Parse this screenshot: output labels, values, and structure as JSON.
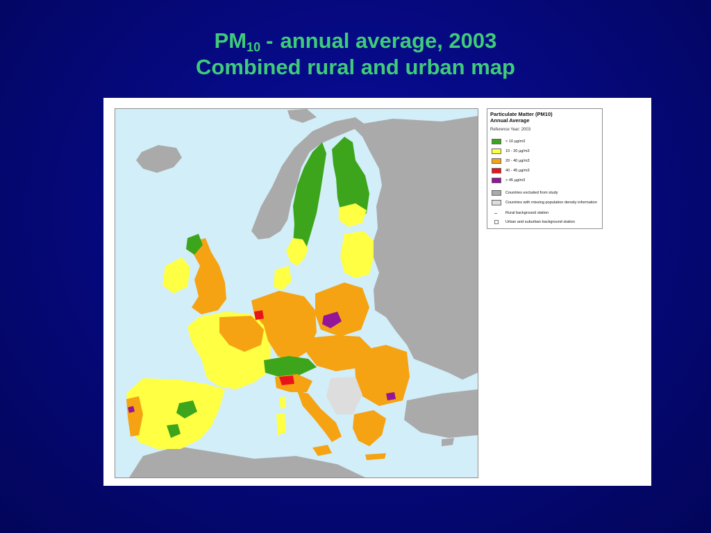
{
  "slide": {
    "title_pm": "PM",
    "title_sub": "10",
    "title_dash": "-",
    "title_rest": "annual average, 2003",
    "subtitle": "Combined rural and urban map"
  },
  "legend": {
    "title_line1": "Particulate Matter (PM10)",
    "title_line2": "Annual Average",
    "reference": "Reference Year: 2003",
    "classes": [
      {
        "label": "< 10 µg/m3",
        "color": "#3da51c"
      },
      {
        "label": "10 - 20 µg/m3",
        "color": "#ffff44"
      },
      {
        "label": "20 - 40 µg/m3",
        "color": "#f5a312"
      },
      {
        "label": "40 - 45 µg/m3",
        "color": "#e8141a"
      },
      {
        "label": "> 45 µg/m3",
        "color": "#93159a"
      }
    ],
    "areas": [
      {
        "label": "Countries excluded from study",
        "color": "#aaaaaa"
      },
      {
        "label": "Countries with missing population density information",
        "color": "#dddddd"
      }
    ],
    "stations": [
      {
        "label": "Rural background station",
        "marker": "dash"
      },
      {
        "label": "Urban and suburban background station",
        "marker": "square"
      }
    ]
  },
  "map_colors": {
    "sea": "#d2eef8",
    "excluded": "#aaaaaa",
    "missing": "#dddddd",
    "border": "#999999"
  }
}
